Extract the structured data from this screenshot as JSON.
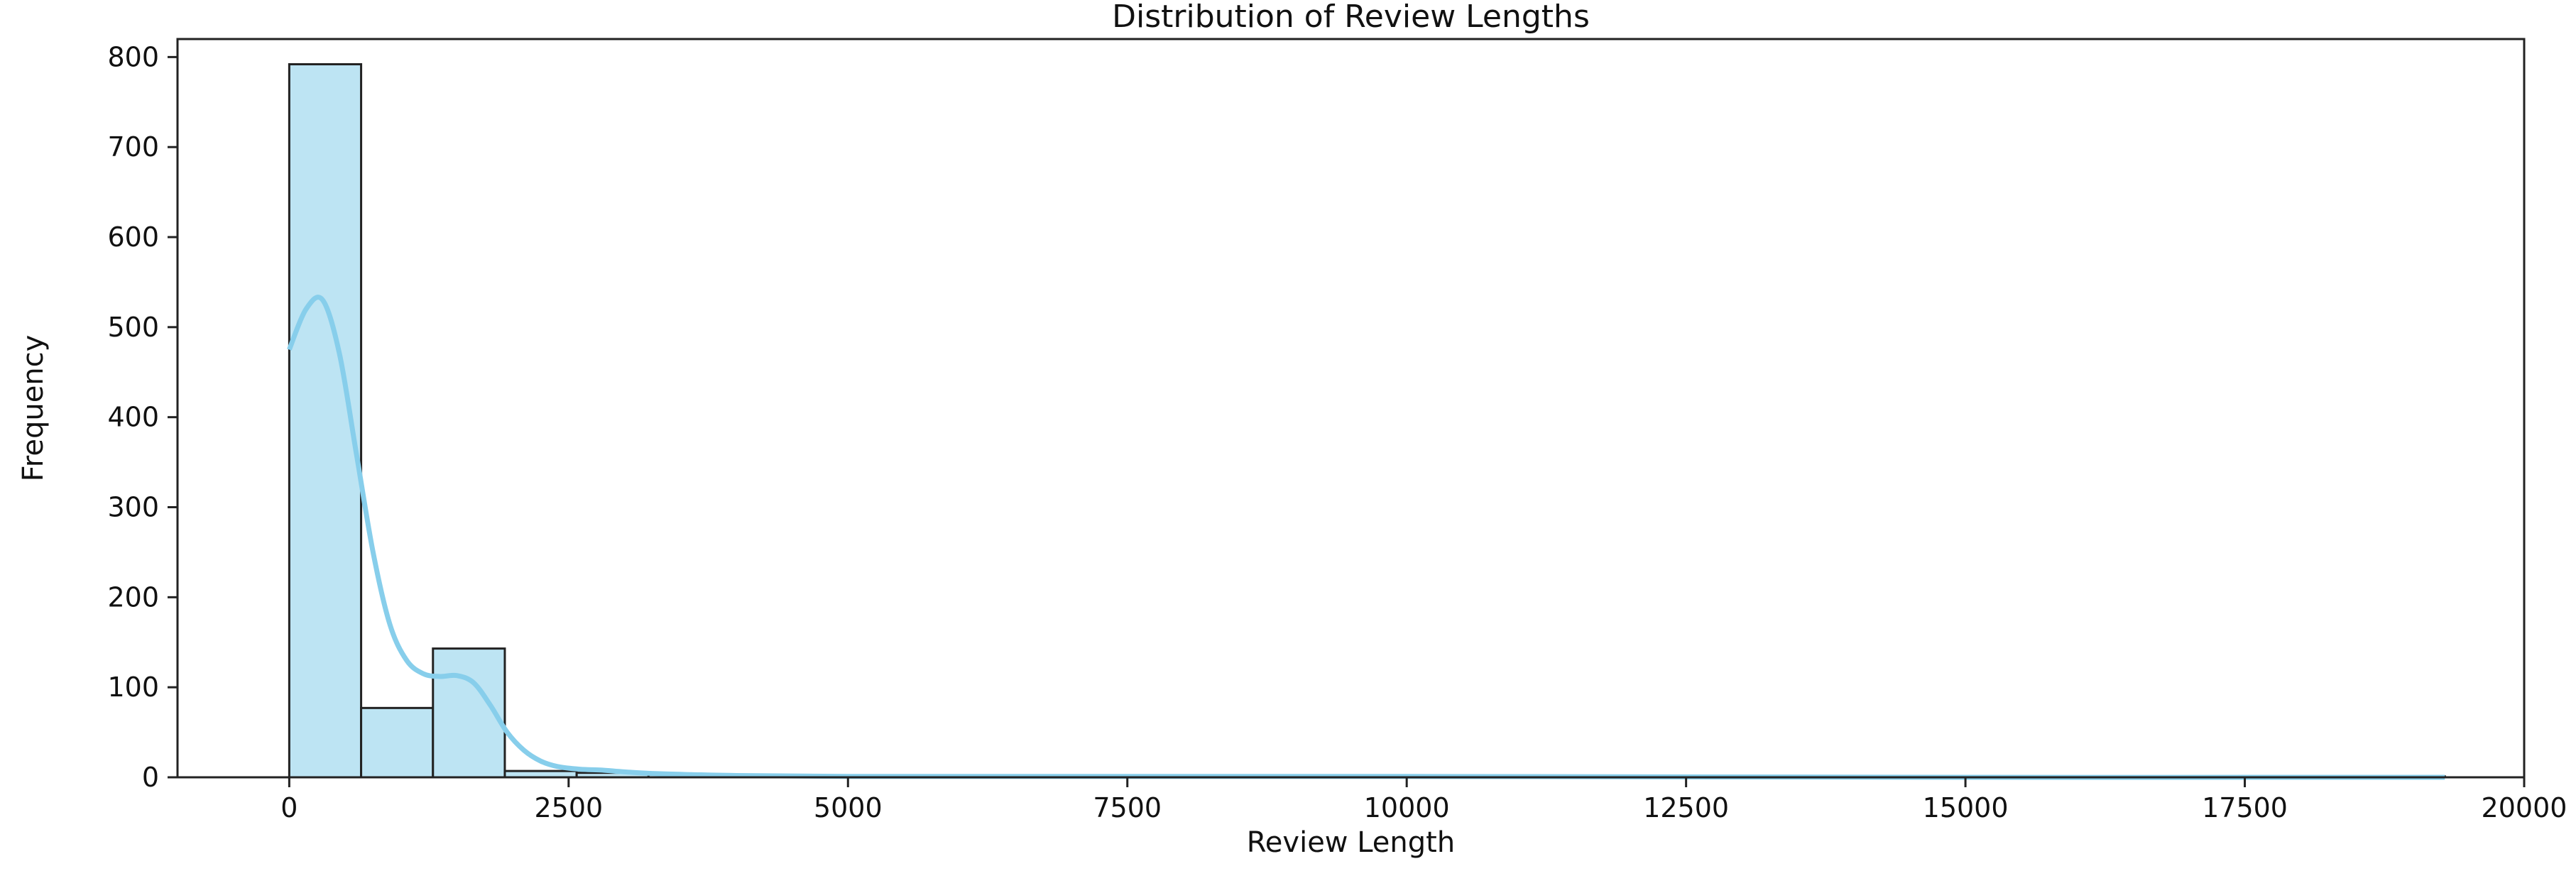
{
  "chart_data": {
    "type": "histogram",
    "title": "Distribution of Review Lengths",
    "xlabel": "Review Length",
    "ylabel": "Frequency",
    "xlim": [
      -1000,
      20000
    ],
    "ylim": [
      0,
      820
    ],
    "xticks": [
      0,
      2500,
      5000,
      7500,
      10000,
      12500,
      15000,
      17500,
      20000
    ],
    "yticks": [
      0,
      100,
      200,
      300,
      400,
      500,
      600,
      700,
      800
    ],
    "bin_width": 643,
    "bins": [
      {
        "x0": 0,
        "x1": 643,
        "count": 792
      },
      {
        "x0": 643,
        "x1": 1286,
        "count": 77
      },
      {
        "x0": 1286,
        "x1": 1929,
        "count": 143
      },
      {
        "x0": 1929,
        "x1": 2572,
        "count": 7
      },
      {
        "x0": 2572,
        "x1": 3215,
        "count": 5
      },
      {
        "x0": 3215,
        "x1": 3858,
        "count": 3
      },
      {
        "x0": 3858,
        "x1": 4501,
        "count": 1
      },
      {
        "x0": 4501,
        "x1": 5144,
        "count": 1
      },
      {
        "x0": 5144,
        "x1": 5787,
        "count": 1
      },
      {
        "x0": 5787,
        "x1": 6430,
        "count": 1
      },
      {
        "x0": 6430,
        "x1": 7073,
        "count": 1
      },
      {
        "x0": 7073,
        "x1": 7716,
        "count": 1
      },
      {
        "x0": 7716,
        "x1": 8359,
        "count": 0
      },
      {
        "x0": 8359,
        "x1": 9002,
        "count": 1
      },
      {
        "x0": 9002,
        "x1": 9645,
        "count": 0
      },
      {
        "x0": 9645,
        "x1": 10288,
        "count": 2
      },
      {
        "x0": 10288,
        "x1": 10931,
        "count": 0
      },
      {
        "x0": 10931,
        "x1": 11574,
        "count": 0
      },
      {
        "x0": 11574,
        "x1": 12217,
        "count": 0
      },
      {
        "x0": 12217,
        "x1": 12860,
        "count": 0
      },
      {
        "x0": 12860,
        "x1": 13503,
        "count": 0
      },
      {
        "x0": 13503,
        "x1": 14146,
        "count": 0
      },
      {
        "x0": 14146,
        "x1": 14789,
        "count": 0
      },
      {
        "x0": 14789,
        "x1": 15432,
        "count": 0
      },
      {
        "x0": 15432,
        "x1": 16075,
        "count": 0
      },
      {
        "x0": 16075,
        "x1": 16718,
        "count": 0
      },
      {
        "x0": 16718,
        "x1": 17361,
        "count": 0
      },
      {
        "x0": 17361,
        "x1": 18004,
        "count": 1
      },
      {
        "x0": 18004,
        "x1": 18647,
        "count": 0
      },
      {
        "x0": 18647,
        "x1": 19290,
        "count": 1
      }
    ],
    "kde": {
      "x": [
        0,
        150,
        300,
        450,
        600,
        750,
        900,
        1050,
        1200,
        1350,
        1500,
        1650,
        1800,
        1950,
        2100,
        2250,
        2400,
        2600,
        2800,
        3000,
        3300,
        3600,
        4000,
        5000,
        7000,
        10000,
        15000,
        19290
      ],
      "y": [
        475,
        520,
        530,
        470,
        360,
        250,
        170,
        130,
        115,
        112,
        113,
        105,
        80,
        50,
        30,
        18,
        12,
        9,
        8,
        6,
        4,
        3,
        2,
        1,
        1,
        1,
        0,
        0
      ]
    },
    "bar_fill": "#bde4f3",
    "bar_edge": "#222222",
    "kde_color": "#87ceeb",
    "grid": false,
    "legend": "none"
  }
}
